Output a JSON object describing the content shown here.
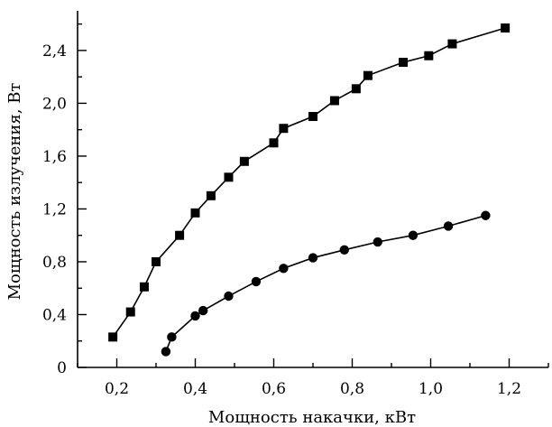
{
  "chart_data": {
    "type": "line",
    "title": "",
    "xlabel": "Мощность накачки, кВт",
    "ylabel": "Мощность излучения, Вт",
    "xlim": [
      0.1,
      1.3
    ],
    "ylim": [
      0,
      2.7
    ],
    "x_ticks": [
      0.2,
      0.4,
      0.6,
      0.8,
      1.0,
      1.2
    ],
    "x_tick_labels": [
      "0,2",
      "0,4",
      "0,6",
      "0,8",
      "1,0",
      "1,2"
    ],
    "y_ticks": [
      0,
      0.4,
      0.8,
      1.2,
      1.6,
      2.0,
      2.4
    ],
    "y_tick_labels": [
      "0",
      "0,4",
      "0,8",
      "1,2",
      "1,6",
      "2,0",
      "2,4"
    ],
    "grid": false,
    "legend": "none",
    "series": [
      {
        "marker": "square",
        "color": "#000000",
        "x": [
          0.19,
          0.235,
          0.27,
          0.3,
          0.36,
          0.4,
          0.44,
          0.485,
          0.525,
          0.6,
          0.625,
          0.7,
          0.755,
          0.81,
          0.84,
          0.93,
          0.995,
          1.055,
          1.19
        ],
        "y": [
          0.23,
          0.42,
          0.61,
          0.8,
          1.0,
          1.17,
          1.3,
          1.44,
          1.56,
          1.7,
          1.81,
          1.9,
          2.02,
          2.11,
          2.21,
          2.31,
          2.36,
          2.45,
          2.57
        ]
      },
      {
        "marker": "circle",
        "color": "#000000",
        "x": [
          0.325,
          0.34,
          0.4,
          0.42,
          0.485,
          0.555,
          0.625,
          0.7,
          0.78,
          0.865,
          0.955,
          1.045,
          1.14
        ],
        "y": [
          0.12,
          0.23,
          0.39,
          0.43,
          0.54,
          0.65,
          0.75,
          0.83,
          0.89,
          0.95,
          1.0,
          1.07,
          1.15
        ]
      }
    ]
  }
}
